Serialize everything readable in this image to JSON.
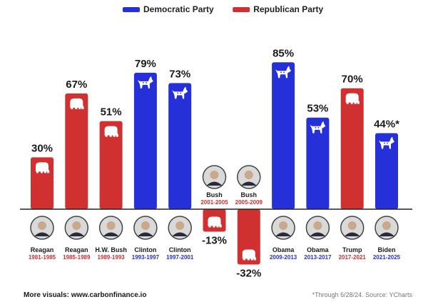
{
  "chart_data": {
    "type": "bar",
    "ylim": [
      -35,
      90
    ],
    "legend_position": "top-center",
    "grid": false,
    "legend": [
      {
        "name": "Democratic Party",
        "color": "#2530d8"
      },
      {
        "name": "Republican Party",
        "color": "#d03030"
      }
    ],
    "bars": [
      {
        "name": "Reagan",
        "years": "1981-1985",
        "value": 30,
        "label": "30%",
        "party": "Republican Party",
        "icon": "elephant-icon"
      },
      {
        "name": "Reagan",
        "years": "1985-1989",
        "value": 67,
        "label": "67%",
        "party": "Republican Party",
        "icon": "elephant-icon"
      },
      {
        "name": "H.W. Bush",
        "years": "1989-1993",
        "value": 51,
        "label": "51%",
        "party": "Republican Party",
        "icon": "elephant-icon"
      },
      {
        "name": "Clinton",
        "years": "1993-1997",
        "value": 79,
        "label": "79%",
        "party": "Democratic Party",
        "icon": "donkey-icon"
      },
      {
        "name": "Clinton",
        "years": "1997-2001",
        "value": 73,
        "label": "73%",
        "party": "Democratic Party",
        "icon": "donkey-icon"
      },
      {
        "name": "Bush",
        "years": "2001-2005",
        "value": -13,
        "label": "-13%",
        "party": "Republican Party",
        "icon": "elephant-icon"
      },
      {
        "name": "Bush",
        "years": "2005-2009",
        "value": -32,
        "label": "-32%",
        "party": "Republican Party",
        "icon": "elephant-icon"
      },
      {
        "name": "Obama",
        "years": "2009-2013",
        "value": 85,
        "label": "85%",
        "party": "Democratic Party",
        "icon": "donkey-icon"
      },
      {
        "name": "Obama",
        "years": "2013-2017",
        "value": 53,
        "label": "53%",
        "party": "Democratic Party",
        "icon": "donkey-icon"
      },
      {
        "name": "Trump",
        "years": "2017-2021",
        "value": 70,
        "label": "70%",
        "party": "Republican Party",
        "icon": "elephant-icon"
      },
      {
        "name": "Biden",
        "years": "2021-2025",
        "value": 44,
        "label": "44%*",
        "party": "Democratic Party",
        "icon": "donkey-icon"
      }
    ]
  },
  "footer": {
    "left": "More visuals: www.carbonfinance.io",
    "right": "*Through 6/28/24. Source: YCharts"
  }
}
